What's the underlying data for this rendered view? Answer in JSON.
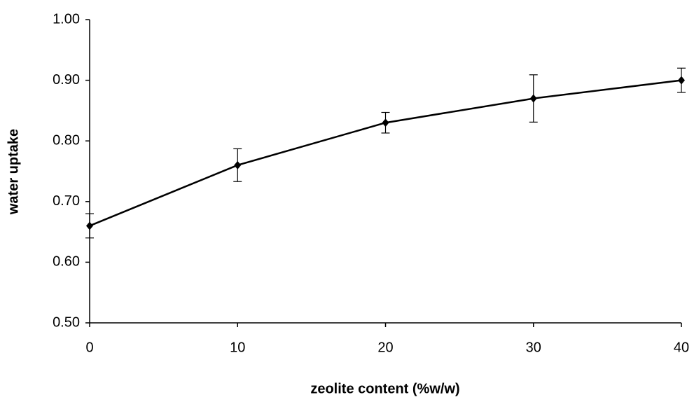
{
  "chart_data": {
    "type": "line",
    "x_label": "zeolite content (%w/w)",
    "y_label": "water uptake",
    "x": [
      0,
      10,
      20,
      30,
      40
    ],
    "series": [
      {
        "name": "water uptake",
        "color": "#000000",
        "values": [
          0.66,
          0.76,
          0.83,
          0.87,
          0.9
        ],
        "errors": [
          0.02,
          0.027,
          0.017,
          0.039,
          0.02
        ]
      }
    ],
    "xlim": [
      0,
      40
    ],
    "xticks": [
      0,
      10,
      20,
      30,
      40
    ],
    "ylim": [
      0.5,
      1.0
    ],
    "yticks": [
      {
        "value": 0.5,
        "label": "0.50"
      },
      {
        "value": 0.6,
        "label": "0.60"
      },
      {
        "value": 0.7,
        "label": "0.70"
      },
      {
        "value": 0.8,
        "label": "0.80"
      },
      {
        "value": 0.9,
        "label": "0.90"
      },
      {
        "value": 1.0,
        "label": "1.00"
      }
    ],
    "grid": false
  }
}
